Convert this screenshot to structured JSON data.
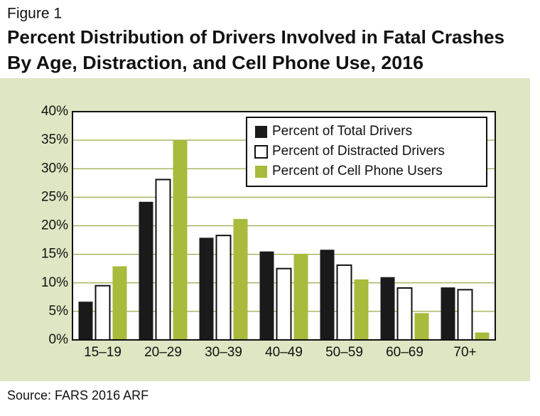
{
  "chart_data": {
    "type": "bar",
    "figure_label": "Figure 1",
    "title": [
      "Percent Distribution of Drivers Involved in Fatal Crashes",
      "By Age, Distraction, and Cell Phone Use, 2016"
    ],
    "source": "Source: FARS 2016 ARF",
    "categories": [
      "15–19",
      "20–29",
      "30–39",
      "40–49",
      "50–59",
      "60–69",
      "70+"
    ],
    "series": [
      {
        "name": "Percent of Total Drivers",
        "color": "#1a1a1a",
        "values": [
          6.7,
          24.2,
          17.9,
          15.5,
          15.8,
          11,
          9.2
        ]
      },
      {
        "name": "Percent of Distracted Drivers",
        "color": "#ffffff",
        "values": [
          9.5,
          28.1,
          18.3,
          12.5,
          13.1,
          9.1,
          8.8
        ]
      },
      {
        "name": "Percent of Cell Phone Users",
        "color": "#a9ba3c",
        "values": [
          12.9,
          35,
          21.2,
          15.1,
          10.6,
          4.7,
          1.3
        ]
      }
    ],
    "ylim": [
      0,
      40
    ],
    "yticks": [
      {
        "value": 0,
        "label": "0%"
      },
      {
        "value": 5,
        "label": "5%"
      },
      {
        "value": 10,
        "label": "10%"
      },
      {
        "value": 15,
        "label": "15%"
      },
      {
        "value": 20,
        "label": "20%"
      },
      {
        "value": 25,
        "label": "25%"
      },
      {
        "value": 30,
        "label": "30%"
      },
      {
        "value": 35,
        "label": "35%"
      },
      {
        "value": 40,
        "label": "40%"
      }
    ],
    "grid": true,
    "legend": "top-right"
  }
}
